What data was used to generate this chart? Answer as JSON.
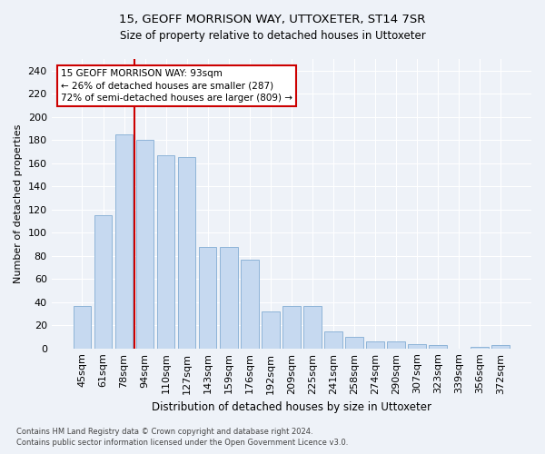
{
  "title": "15, GEOFF MORRISON WAY, UTTOXETER, ST14 7SR",
  "subtitle": "Size of property relative to detached houses in Uttoxeter",
  "xlabel": "Distribution of detached houses by size in Uttoxeter",
  "ylabel": "Number of detached properties",
  "bar_labels": [
    "45sqm",
    "61sqm",
    "78sqm",
    "94sqm",
    "110sqm",
    "127sqm",
    "143sqm",
    "159sqm",
    "176sqm",
    "192sqm",
    "209sqm",
    "225sqm",
    "241sqm",
    "258sqm",
    "274sqm",
    "290sqm",
    "307sqm",
    "323sqm",
    "339sqm",
    "356sqm",
    "372sqm"
  ],
  "bar_values": [
    37,
    115,
    185,
    180,
    167,
    165,
    88,
    88,
    77,
    32,
    37,
    37,
    15,
    10,
    6,
    6,
    4,
    3,
    0,
    1,
    3
  ],
  "bar_color": "#c6d9f0",
  "bar_edge_color": "#8eb4d8",
  "vline_x_index": 2.5,
  "vline_color": "#cc0000",
  "annotation_text": "15 GEOFF MORRISON WAY: 93sqm\n← 26% of detached houses are smaller (287)\n72% of semi-detached houses are larger (809) →",
  "annotation_box_color": "#ffffff",
  "annotation_box_edge": "#cc0000",
  "ylim": [
    0,
    250
  ],
  "yticks": [
    0,
    20,
    40,
    60,
    80,
    100,
    120,
    140,
    160,
    180,
    200,
    220,
    240
  ],
  "footer_line1": "Contains HM Land Registry data © Crown copyright and database right 2024.",
  "footer_line2": "Contains public sector information licensed under the Open Government Licence v3.0.",
  "bg_color": "#eef2f8",
  "grid_color": "#ffffff"
}
